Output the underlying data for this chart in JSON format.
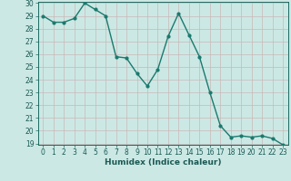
{
  "x": [
    0,
    1,
    2,
    3,
    4,
    5,
    6,
    7,
    8,
    9,
    10,
    11,
    12,
    13,
    14,
    15,
    16,
    17,
    18,
    19,
    20,
    21,
    22,
    23
  ],
  "y": [
    29.0,
    28.5,
    28.5,
    28.8,
    30.0,
    29.5,
    29.0,
    25.8,
    25.7,
    24.5,
    23.5,
    24.8,
    27.4,
    29.2,
    27.5,
    25.8,
    23.0,
    20.4,
    19.5,
    19.6,
    19.5,
    19.6,
    19.4,
    18.9
  ],
  "line_color": "#1a7a6e",
  "marker_color": "#1a7a6e",
  "bg_color": "#cce8e4",
  "grid_color_v": "#c8b8b8",
  "grid_color_h": "#c8b8b8",
  "xlabel": "Humidex (Indice chaleur)",
  "ylim_min": 19,
  "ylim_max": 30,
  "xlim_min": -0.5,
  "xlim_max": 23.5,
  "yticks": [
    19,
    20,
    21,
    22,
    23,
    24,
    25,
    26,
    27,
    28,
    29,
    30
  ],
  "xticks": [
    0,
    1,
    2,
    3,
    4,
    5,
    6,
    7,
    8,
    9,
    10,
    11,
    12,
    13,
    14,
    15,
    16,
    17,
    18,
    19,
    20,
    21,
    22,
    23
  ],
  "tick_fontsize": 5.5,
  "xlabel_fontsize": 6.5,
  "linewidth": 1.0,
  "markersize": 2.0,
  "tick_color": "#1a6a60",
  "label_color": "#1a5a55"
}
